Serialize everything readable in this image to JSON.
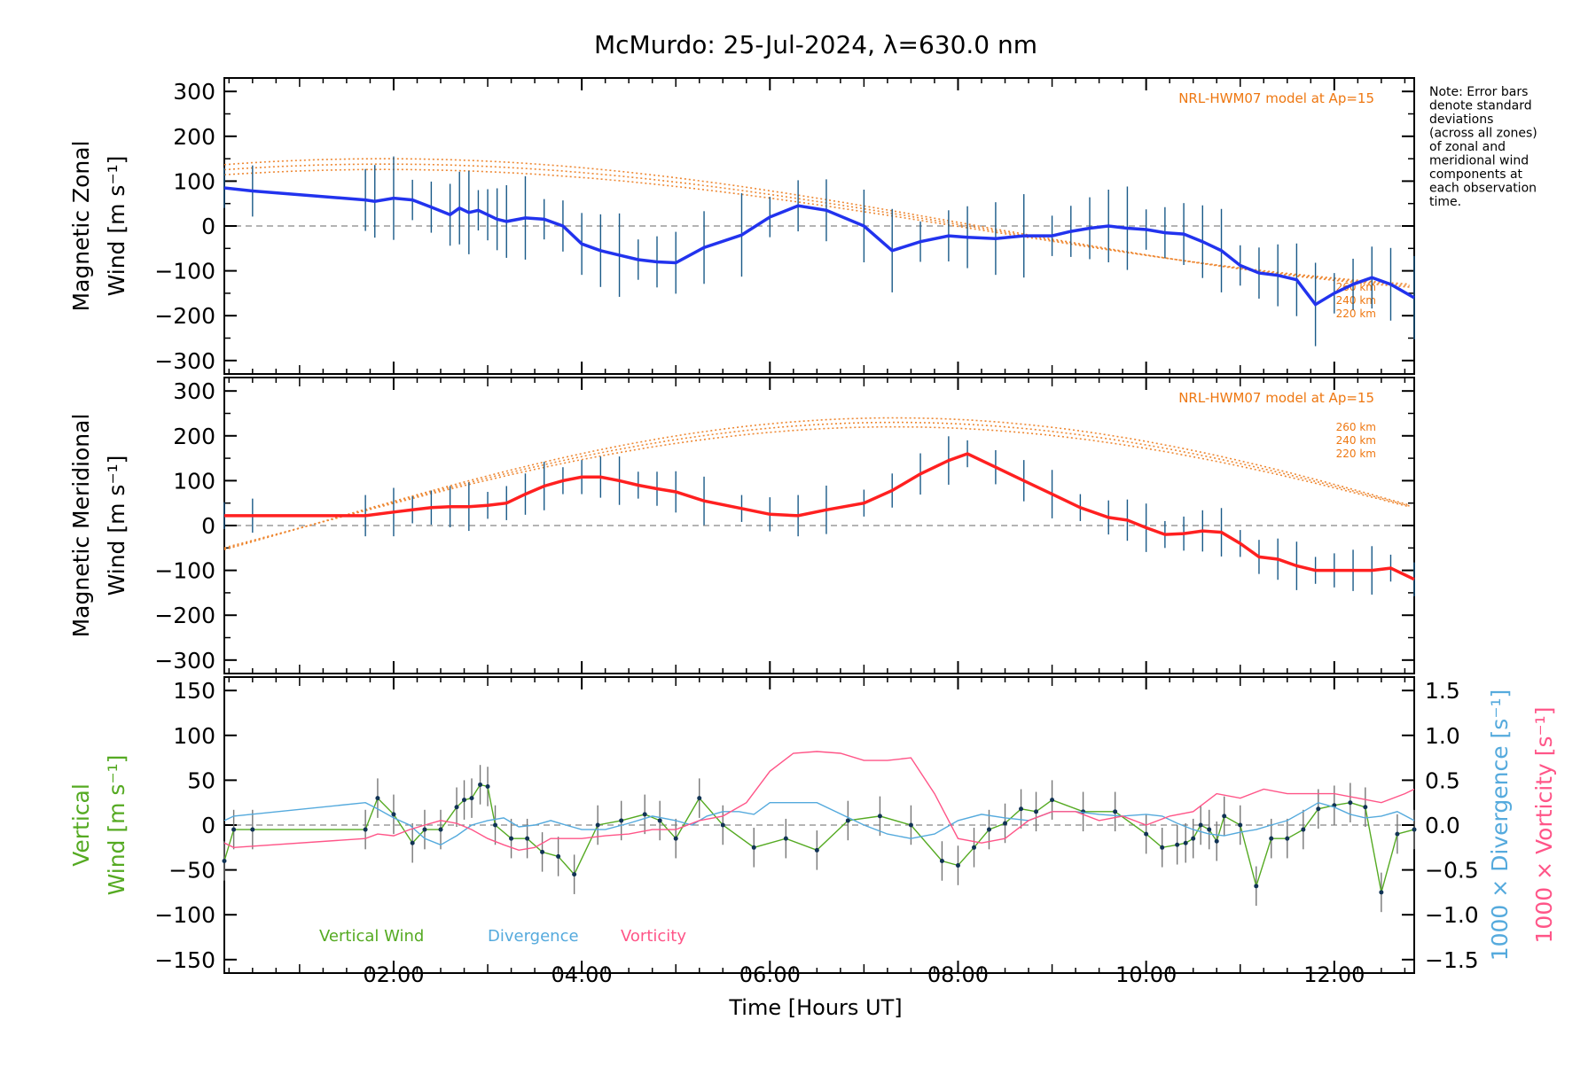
{
  "chart_data": {
    "title": "McMurdo: 25-Jul-2024, λ=630.0 nm",
    "xlabel": "Time [Hours UT]",
    "x_ticks": [
      "02:00",
      "04:00",
      "06:00",
      "08:00",
      "10:00",
      "12:00"
    ],
    "x_tick_values": [
      2,
      4,
      6,
      8,
      10,
      12
    ],
    "xlim": [
      0.2,
      12.85
    ],
    "note": "Note: Error bars denote standard deviations (across all zones) of zonal and meridional wind components at each observation time.",
    "note_lines": [
      "Note: Error bars",
      "denote standard",
      "deviations",
      "(across all zones)",
      "of zonal and",
      "meridional wind",
      "components at",
      "each observation",
      "time."
    ],
    "panels": [
      {
        "type": "line",
        "ylabel_lines": [
          "Magnetic Zonal",
          "Wind [m s⁻¹]"
        ],
        "ylim": [
          -330,
          330
        ],
        "y_ticks": [
          -300,
          -200,
          -100,
          0,
          100,
          200,
          300
        ],
        "model_label": "NRL-HWM07 model at Ap=15",
        "model_altitudes": [
          "260 km",
          "240 km",
          "220 km"
        ],
        "series": [
          {
            "color": "#2233ee",
            "x": [
              0.2,
              0.5,
              1.7,
              1.8,
              2.0,
              2.2,
              2.4,
              2.6,
              2.7,
              2.8,
              2.9,
              3.0,
              3.1,
              3.2,
              3.4,
              3.6,
              3.8,
              4.0,
              4.2,
              4.4,
              4.6,
              4.8,
              5.0,
              5.3,
              5.7,
              6.0,
              6.3,
              6.6,
              7.0,
              7.3,
              7.6,
              7.9,
              8.1,
              8.4,
              8.7,
              9.0,
              9.2,
              9.4,
              9.6,
              9.8,
              10.0,
              10.2,
              10.4,
              10.6,
              10.8,
              11.0,
              11.2,
              11.4,
              11.6,
              11.8,
              12.0,
              12.2,
              12.4,
              12.6,
              12.85
            ],
            "values": [
              85,
              78,
              58,
              55,
              62,
              58,
              42,
              25,
              40,
              30,
              35,
              25,
              15,
              10,
              18,
              15,
              0,
              -40,
              -55,
              -65,
              -75,
              -80,
              -82,
              -48,
              -20,
              20,
              45,
              35,
              0,
              -55,
              -35,
              -22,
              -25,
              -28,
              -22,
              -22,
              -12,
              -5,
              0,
              -5,
              -8,
              -15,
              -18,
              -35,
              -55,
              -88,
              -105,
              -110,
              -120,
              -175,
              -150,
              -130,
              -115,
              -130,
              -160
            ]
          }
        ]
      },
      {
        "type": "line",
        "ylabel_lines": [
          "Magnetic Meridional",
          "Wind [m s⁻¹]"
        ],
        "ylim": [
          -330,
          330
        ],
        "y_ticks": [
          -300,
          -200,
          -100,
          0,
          100,
          200,
          300
        ],
        "model_label": "NRL-HWM07 model at Ap=15",
        "model_altitudes": [
          "260 km",
          "240 km",
          "220 km"
        ],
        "series": [
          {
            "color": "#ff2020",
            "x": [
              0.2,
              0.5,
              1.7,
              2.0,
              2.2,
              2.4,
              2.6,
              2.8,
              3.0,
              3.2,
              3.4,
              3.6,
              3.8,
              4.0,
              4.2,
              4.4,
              4.6,
              4.8,
              5.0,
              5.3,
              5.7,
              6.0,
              6.3,
              6.6,
              7.0,
              7.3,
              7.6,
              7.9,
              8.1,
              8.4,
              8.7,
              9.0,
              9.3,
              9.6,
              9.8,
              10.0,
              10.2,
              10.4,
              10.6,
              10.8,
              11.0,
              11.2,
              11.4,
              11.6,
              11.8,
              12.0,
              12.2,
              12.4,
              12.6,
              12.85
            ],
            "values": [
              22,
              22,
              22,
              30,
              35,
              40,
              42,
              42,
              45,
              50,
              70,
              88,
              100,
              108,
              108,
              100,
              90,
              82,
              75,
              55,
              38,
              25,
              22,
              35,
              50,
              78,
              115,
              145,
              160,
              130,
              100,
              70,
              40,
              18,
              12,
              -5,
              -20,
              -18,
              -12,
              -15,
              -40,
              -70,
              -75,
              -90,
              -100,
              -100,
              -100,
              -100,
              -95,
              -120
            ]
          }
        ]
      },
      {
        "type": "line",
        "ylabel_lines": [
          "Vertical",
          "Wind [m s⁻¹]"
        ],
        "ylim": [
          -165,
          165
        ],
        "y_ticks": [
          -150,
          -100,
          -50,
          0,
          50,
          100,
          150
        ],
        "y2_ticks": [
          "1.5",
          "1.0",
          "0.5",
          "0.0",
          "−0.5",
          "−1.0",
          "−1.5"
        ],
        "y2_tick_values": [
          1.5,
          1.0,
          0.5,
          0.0,
          -0.5,
          -1.0,
          -1.5
        ],
        "y2lim": [
          -1.65,
          1.65
        ],
        "y2label_a": "1000 × Divergence [s⁻¹]",
        "y2label_b": "1000 × Vorticity [s⁻¹]",
        "legend": [
          "Vertical Wind",
          "Divergence",
          "Vorticity"
        ],
        "series": [
          {
            "name": "Vertical Wind",
            "color": "#55aa22",
            "x": [
              0.2,
              0.3,
              0.5,
              1.7,
              1.83,
              2.0,
              2.2,
              2.33,
              2.5,
              2.67,
              2.75,
              2.83,
              2.92,
              3.0,
              3.08,
              3.25,
              3.42,
              3.58,
              3.75,
              3.92,
              4.17,
              4.42,
              4.67,
              4.83,
              5.0,
              5.25,
              5.5,
              5.83,
              6.17,
              6.5,
              6.83,
              7.17,
              7.5,
              7.83,
              8.0,
              8.17,
              8.33,
              8.5,
              8.67,
              8.83,
              9.0,
              9.33,
              9.67,
              10.0,
              10.17,
              10.33,
              10.42,
              10.5,
              10.58,
              10.67,
              10.75,
              10.83,
              11.0,
              11.17,
              11.33,
              11.5,
              11.67,
              11.83,
              12.0,
              12.17,
              12.33,
              12.5,
              12.67,
              12.85
            ],
            "values": [
              -40,
              -5,
              -5,
              -5,
              30,
              12,
              -20,
              -5,
              -5,
              20,
              28,
              30,
              45,
              43,
              0,
              -15,
              -15,
              -30,
              -35,
              -55,
              0,
              5,
              12,
              5,
              -15,
              30,
              0,
              -25,
              -15,
              -28,
              5,
              10,
              0,
              -40,
              -45,
              -25,
              -5,
              2,
              18,
              15,
              28,
              15,
              15,
              -10,
              -25,
              -22,
              -20,
              -15,
              0,
              -5,
              -18,
              10,
              0,
              -68,
              -15,
              -15,
              -5,
              18,
              22,
              25,
              20,
              -75,
              -10,
              -5
            ]
          },
          {
            "name": "Divergence",
            "color": "#55aadd",
            "x": [
              0.2,
              0.3,
              1.7,
              1.83,
              2.0,
              2.17,
              2.33,
              2.5,
              2.67,
              2.83,
              3.0,
              3.17,
              3.33,
              3.5,
              3.67,
              3.83,
              4.0,
              4.25,
              4.5,
              4.75,
              5.0,
              5.17,
              5.33,
              5.5,
              5.67,
              5.83,
              6.0,
              6.5,
              7.0,
              7.25,
              7.5,
              7.75,
              8.0,
              8.25,
              8.5,
              8.75,
              9.0,
              9.25,
              9.5,
              9.75,
              10.0,
              10.17,
              10.33,
              10.5,
              10.67,
              10.83,
              11.0,
              11.17,
              11.33,
              11.5,
              11.67,
              11.83,
              12.0,
              12.17,
              12.33,
              12.5,
              12.67,
              12.85
            ],
            "values": [
              0.05,
              0.1,
              0.25,
              0.18,
              0.08,
              0.0,
              -0.15,
              -0.22,
              -0.12,
              0.0,
              0.05,
              0.08,
              -0.02,
              0.0,
              0.05,
              0.0,
              -0.05,
              -0.05,
              0.02,
              0.1,
              0.05,
              0.0,
              0.1,
              0.15,
              0.15,
              0.12,
              0.25,
              0.25,
              0.0,
              -0.1,
              -0.15,
              -0.1,
              0.05,
              0.12,
              0.08,
              0.05,
              0.15,
              0.15,
              0.12,
              0.1,
              0.12,
              0.1,
              0.02,
              -0.05,
              -0.1,
              -0.12,
              -0.08,
              -0.05,
              0.0,
              0.05,
              0.15,
              0.25,
              0.2,
              0.12,
              0.08,
              0.1,
              0.15,
              0.05
            ]
          },
          {
            "name": "Vorticity",
            "color": "#ff5588",
            "x": [
              0.2,
              0.3,
              1.7,
              1.83,
              2.0,
              2.17,
              2.33,
              2.5,
              2.67,
              2.83,
              3.0,
              3.17,
              3.33,
              3.5,
              3.67,
              3.83,
              4.0,
              4.25,
              4.5,
              4.75,
              5.0,
              5.25,
              5.5,
              5.75,
              6.0,
              6.25,
              6.5,
              6.75,
              7.0,
              7.25,
              7.5,
              7.75,
              8.0,
              8.25,
              8.5,
              8.75,
              9.0,
              9.25,
              9.5,
              9.75,
              10.0,
              10.25,
              10.5,
              10.75,
              11.0,
              11.25,
              11.5,
              11.75,
              12.0,
              12.25,
              12.5,
              12.75,
              12.85
            ],
            "values": [
              -0.2,
              -0.25,
              -0.15,
              -0.1,
              -0.12,
              -0.05,
              0.0,
              0.05,
              0.02,
              -0.05,
              -0.15,
              -0.22,
              -0.28,
              -0.25,
              -0.15,
              -0.15,
              -0.15,
              -0.12,
              -0.1,
              -0.05,
              -0.05,
              0.05,
              0.1,
              0.25,
              0.6,
              0.8,
              0.82,
              0.8,
              0.72,
              0.72,
              0.75,
              0.35,
              -0.15,
              -0.2,
              -0.15,
              0.05,
              0.15,
              0.15,
              0.05,
              0.1,
              0.0,
              0.1,
              0.15,
              0.35,
              0.3,
              0.4,
              0.35,
              0.35,
              0.35,
              0.3,
              0.25,
              0.35,
              0.4
            ]
          }
        ]
      }
    ]
  }
}
